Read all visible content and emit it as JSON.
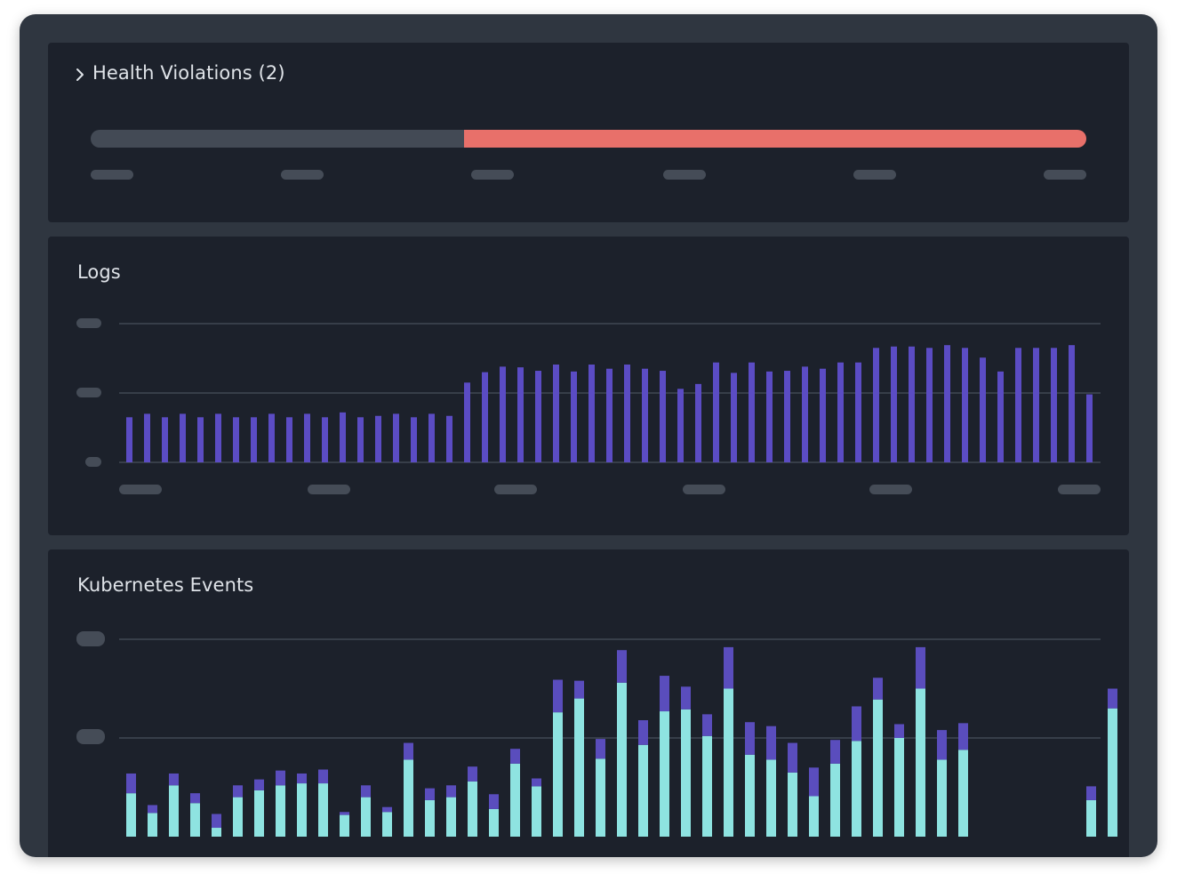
{
  "health": {
    "title": "Health Violations (2)",
    "bar": {
      "ok_fraction": 0.375,
      "violation_fraction": 0.625,
      "ok_color": "#434a55",
      "violation_color": "#e8706a"
    },
    "icon": "chevron-right-icon"
  },
  "logs": {
    "title": "Logs",
    "chart_data": {
      "type": "bar",
      "ylim": [
        0,
        2
      ],
      "grid": true,
      "color": "#5b4cc4",
      "values": [
        0.65,
        0.7,
        0.65,
        0.7,
        0.65,
        0.7,
        0.65,
        0.65,
        0.7,
        0.65,
        0.7,
        0.65,
        0.72,
        0.65,
        0.67,
        0.7,
        0.65,
        0.7,
        0.67,
        1.15,
        1.3,
        1.38,
        1.37,
        1.32,
        1.41,
        1.31,
        1.41,
        1.35,
        1.41,
        1.35,
        1.32,
        1.06,
        1.13,
        1.44,
        1.29,
        1.44,
        1.31,
        1.32,
        1.38,
        1.35,
        1.44,
        1.44,
        1.65,
        1.67,
        1.67,
        1.65,
        1.69,
        1.65,
        1.51,
        1.31,
        1.65,
        1.65,
        1.65,
        1.69,
        0.98
      ]
    }
  },
  "k8s": {
    "title": "Kubernetes Events",
    "chart_data": {
      "type": "bar",
      "stacked": true,
      "ylim": [
        0,
        2
      ],
      "grid": true,
      "series": [
        {
          "color": "#8ee3e1",
          "values": [
            0.44,
            0.24,
            0.52,
            0.34,
            0.09,
            0.4,
            0.47,
            0.52,
            0.54,
            0.54,
            0.22,
            0.4,
            0.25,
            0.78,
            0.37,
            0.4,
            0.56,
            0.28,
            0.74,
            0.51,
            1.26,
            1.4,
            0.79,
            1.56,
            0.93,
            1.27,
            1.29,
            1.02,
            1.5,
            0.83,
            0.78,
            0.65,
            0.41,
            0.74,
            0.97,
            1.39,
            1.0,
            1.5,
            0.78,
            0.88,
            0,
            0,
            0,
            0,
            0,
            0.37,
            1.3
          ]
        },
        {
          "color": "#5a4dbd",
          "values": [
            0.2,
            0.08,
            0.12,
            0.1,
            0.14,
            0.12,
            0.11,
            0.15,
            0.1,
            0.14,
            0.03,
            0.12,
            0.05,
            0.17,
            0.12,
            0.12,
            0.15,
            0.15,
            0.15,
            0.08,
            0.33,
            0.18,
            0.2,
            0.33,
            0.25,
            0.36,
            0.23,
            0.22,
            0.42,
            0.33,
            0.34,
            0.3,
            0.29,
            0.24,
            0.35,
            0.22,
            0.14,
            0.42,
            0.3,
            0.27,
            0,
            0,
            0,
            0,
            0,
            0.14,
            0.2
          ]
        }
      ]
    }
  }
}
